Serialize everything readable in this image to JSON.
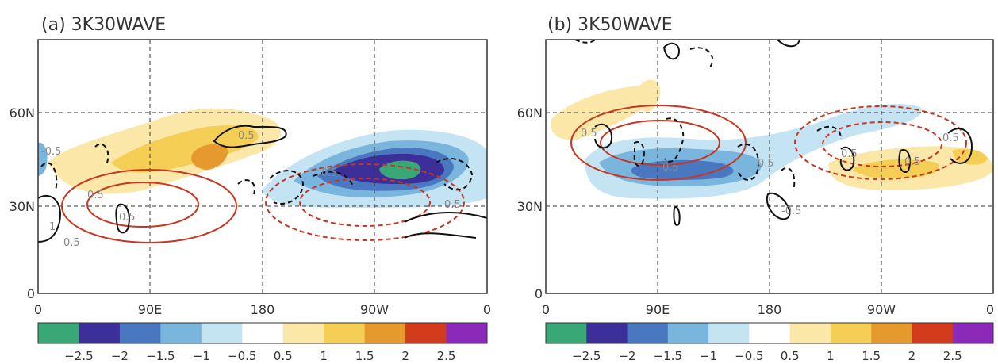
{
  "panels": [
    {
      "title": "(a) 3K30WAVE",
      "contour_labels": [
        "-0.5",
        "0.5",
        "0.5",
        "0.5",
        "1",
        "0.5",
        "0.5",
        "0.5"
      ]
    },
    {
      "title": "(b) 3K50WAVE",
      "contour_labels": [
        "0.5",
        "0.5",
        "0.5",
        "-0.5",
        "0.5",
        "0.5",
        "0.5"
      ]
    }
  ],
  "x_ticks": [
    "0",
    "90E",
    "180",
    "90W",
    "0"
  ],
  "y_ticks": [
    "60N",
    "30N",
    "0"
  ],
  "colorbar": {
    "labels": [
      "-2.5",
      "-2",
      "-1.5",
      "-1",
      "-0.5",
      "0.5",
      "1",
      "1.5",
      "2",
      "2.5"
    ],
    "colors": [
      "#3aa876",
      "#3c2f9a",
      "#4a78c0",
      "#7ab5de",
      "#c4e3f3",
      "#ffffff",
      "#fbe8a8",
      "#f5cf55",
      "#e69a2e",
      "#d23c1c",
      "#8b2ab8"
    ]
  },
  "chart_data": [
    {
      "type": "map",
      "title": "(a) 3K30WAVE",
      "xlim": [
        0,
        360
      ],
      "ylim": [
        0,
        90
      ],
      "x_ticks": [
        "0",
        "90E",
        "180",
        "90W",
        "0"
      ],
      "y_ticks": [
        "60N",
        "30N",
        "0"
      ],
      "grid": true,
      "shading_levels": [
        -2.5,
        -2,
        -1.5,
        -1,
        -0.5,
        0.5,
        1,
        1.5,
        2,
        2.5
      ],
      "features": [
        {
          "kind": "shaded positive anomaly",
          "lon": [
            60,
            200
          ],
          "lat": [
            28,
            52
          ],
          "max": 1.5
        },
        {
          "kind": "shaded negative anomaly",
          "lon": [
            210,
            350
          ],
          "lat": [
            28,
            55
          ],
          "min": -2.5
        },
        {
          "kind": "red solid contours (heating)",
          "lon_center": 95,
          "lat_center": 30
        },
        {
          "kind": "red dashed contours (cooling)",
          "lon_center": 270,
          "lat_center": 31
        }
      ]
    },
    {
      "type": "map",
      "title": "(b) 3K50WAVE",
      "xlim": [
        0,
        360
      ],
      "ylim": [
        0,
        90
      ],
      "x_ticks": [
        "0",
        "90E",
        "180",
        "90W",
        "0"
      ],
      "y_ticks": [
        "60N",
        "30N",
        "0"
      ],
      "grid": true,
      "shading_levels": [
        -2.5,
        -2,
        -1.5,
        -1,
        -0.5,
        0.5,
        1,
        1.5,
        2,
        2.5
      ],
      "features": [
        {
          "kind": "shaded negative anomaly",
          "lon": [
            30,
            280
          ],
          "lat": [
            33,
            65
          ],
          "min": -1.5
        },
        {
          "kind": "shaded positive anomaly",
          "lon": [
            230,
            360
          ],
          "lat": [
            35,
            55
          ],
          "max": 1.5
        },
        {
          "kind": "red solid contours (heating)",
          "lon_center": 95,
          "lat_center": 50
        },
        {
          "kind": "red dashed contours (cooling)",
          "lon_center": 275,
          "lat_center": 50
        }
      ]
    }
  ]
}
